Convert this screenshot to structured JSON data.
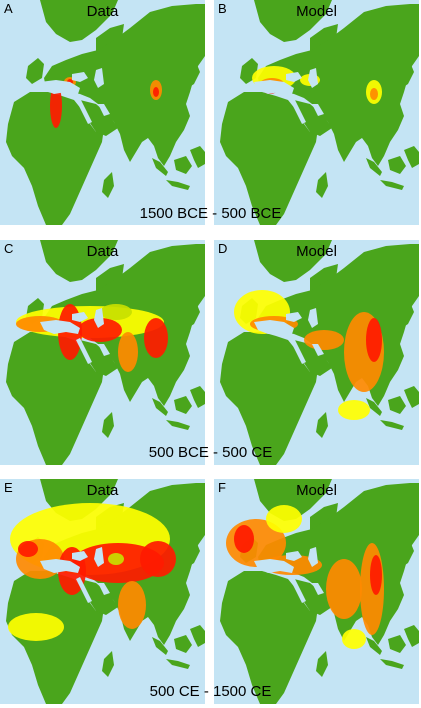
{
  "colors": {
    "ocean": "#c4e4f4",
    "land": "#4aa51c",
    "low": "#c8e000",
    "mid": "#ffff00",
    "high": "#ff8a00",
    "peak": "#ff1a00"
  },
  "rows": [
    {
      "period": "1500 BCE - 500 BCE",
      "panels": [
        {
          "letter": "A",
          "title": "Data"
        },
        {
          "letter": "B",
          "title": "Model"
        }
      ]
    },
    {
      "period": "500 BCE - 500 CE",
      "panels": [
        {
          "letter": "C",
          "title": "Data"
        },
        {
          "letter": "D",
          "title": "Model"
        }
      ]
    },
    {
      "period": "500 CE - 1500 CE",
      "panels": [
        {
          "letter": "E",
          "title": "Data"
        },
        {
          "letter": "F",
          "title": "Model"
        }
      ]
    }
  ]
}
